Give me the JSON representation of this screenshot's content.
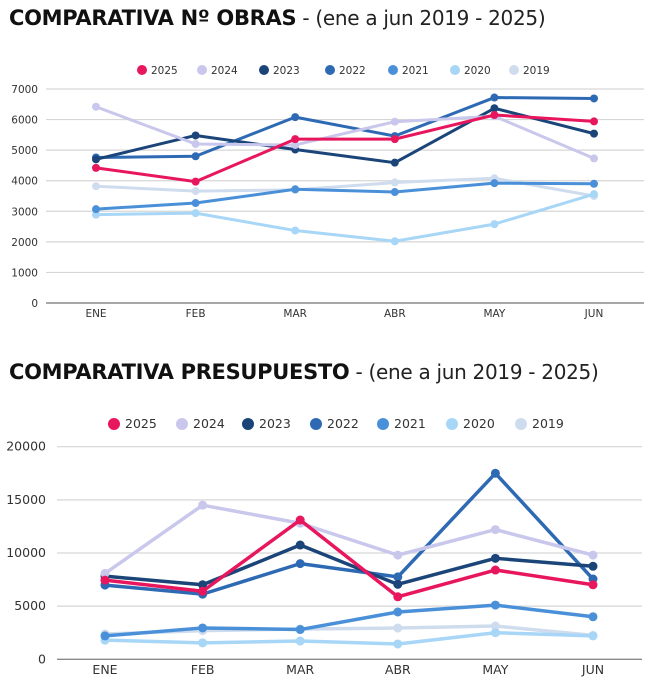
{
  "titles": {
    "chart1_bold": "COMPARATIVA Nº OBRAS",
    "chart1_rest": " - (ene a jun 2019 - 2025)",
    "chart2_bold": "COMPARATIVA PRESUPUESTO",
    "chart2_rest": " - (ene a jun 2019 - 2025)"
  },
  "chart_data": [
    {
      "type": "line",
      "title": "COMPARATIVA Nº OBRAS - (ene a jun 2019 - 2025)",
      "xlabel": "",
      "ylabel": "",
      "categories": [
        "ENE",
        "FEB",
        "MAR",
        "ABR",
        "MAY",
        "JUN"
      ],
      "ylim": [
        0,
        7000
      ],
      "yticks": [
        0,
        1000,
        2000,
        3000,
        4000,
        5000,
        6000,
        7000
      ],
      "grid": true,
      "legend_position": "top-center",
      "series": [
        {
          "name": "2025",
          "color": "#e8175d",
          "values": [
            4420,
            3970,
            5360,
            5360,
            6150,
            5940
          ]
        },
        {
          "name": "2024",
          "color": "#c9c8ec",
          "values": [
            6420,
            5200,
            5170,
            5930,
            6110,
            4730
          ]
        },
        {
          "name": "2023",
          "color": "#1b4579",
          "values": [
            4700,
            5480,
            5020,
            4590,
            6370,
            5540
          ]
        },
        {
          "name": "2022",
          "color": "#2e6ab4",
          "values": [
            4760,
            4800,
            6080,
            5460,
            6720,
            6690
          ]
        },
        {
          "name": "2021",
          "color": "#4a90d9",
          "values": [
            3070,
            3270,
            3720,
            3630,
            3920,
            3900
          ]
        },
        {
          "name": "2020",
          "color": "#a7d6f7",
          "values": [
            2890,
            2940,
            2370,
            2020,
            2580,
            3560
          ]
        },
        {
          "name": "2019",
          "color": "#cfdcee",
          "values": [
            3820,
            3660,
            3700,
            3940,
            4080,
            3500
          ]
        }
      ]
    },
    {
      "type": "line",
      "title": "COMPARATIVA PRESUPUESTO - (ene a jun 2019 - 2025)",
      "xlabel": "",
      "ylabel": "",
      "categories": [
        "ENE",
        "FEB",
        "MAR",
        "ABR",
        "MAY",
        "JUN"
      ],
      "ylim": [
        0,
        20000
      ],
      "yticks": [
        0,
        5000,
        10000,
        15000,
        20000
      ],
      "grid": true,
      "legend_position": "top-center",
      "series": [
        {
          "name": "2025",
          "color": "#e8175d",
          "values": [
            7450,
            6400,
            13100,
            5880,
            8400,
            7010
          ]
        },
        {
          "name": "2024",
          "color": "#c9c8ec",
          "values": [
            8080,
            14500,
            12800,
            9800,
            12200,
            9800
          ]
        },
        {
          "name": "2023",
          "color": "#1b4579",
          "values": [
            7820,
            7010,
            10750,
            7050,
            9500,
            8750
          ]
        },
        {
          "name": "2022",
          "color": "#2e6ab4",
          "values": [
            6980,
            6130,
            9000,
            7750,
            17500,
            7550
          ]
        },
        {
          "name": "2021",
          "color": "#4a90d9",
          "values": [
            2200,
            2950,
            2800,
            4450,
            5100,
            4000
          ]
        },
        {
          "name": "2020",
          "color": "#a7d6f7",
          "values": [
            1800,
            1550,
            1720,
            1440,
            2500,
            2200
          ]
        },
        {
          "name": "2019",
          "color": "#cfdcee",
          "values": [
            2380,
            2700,
            2850,
            2940,
            3130,
            2250
          ]
        }
      ]
    }
  ]
}
